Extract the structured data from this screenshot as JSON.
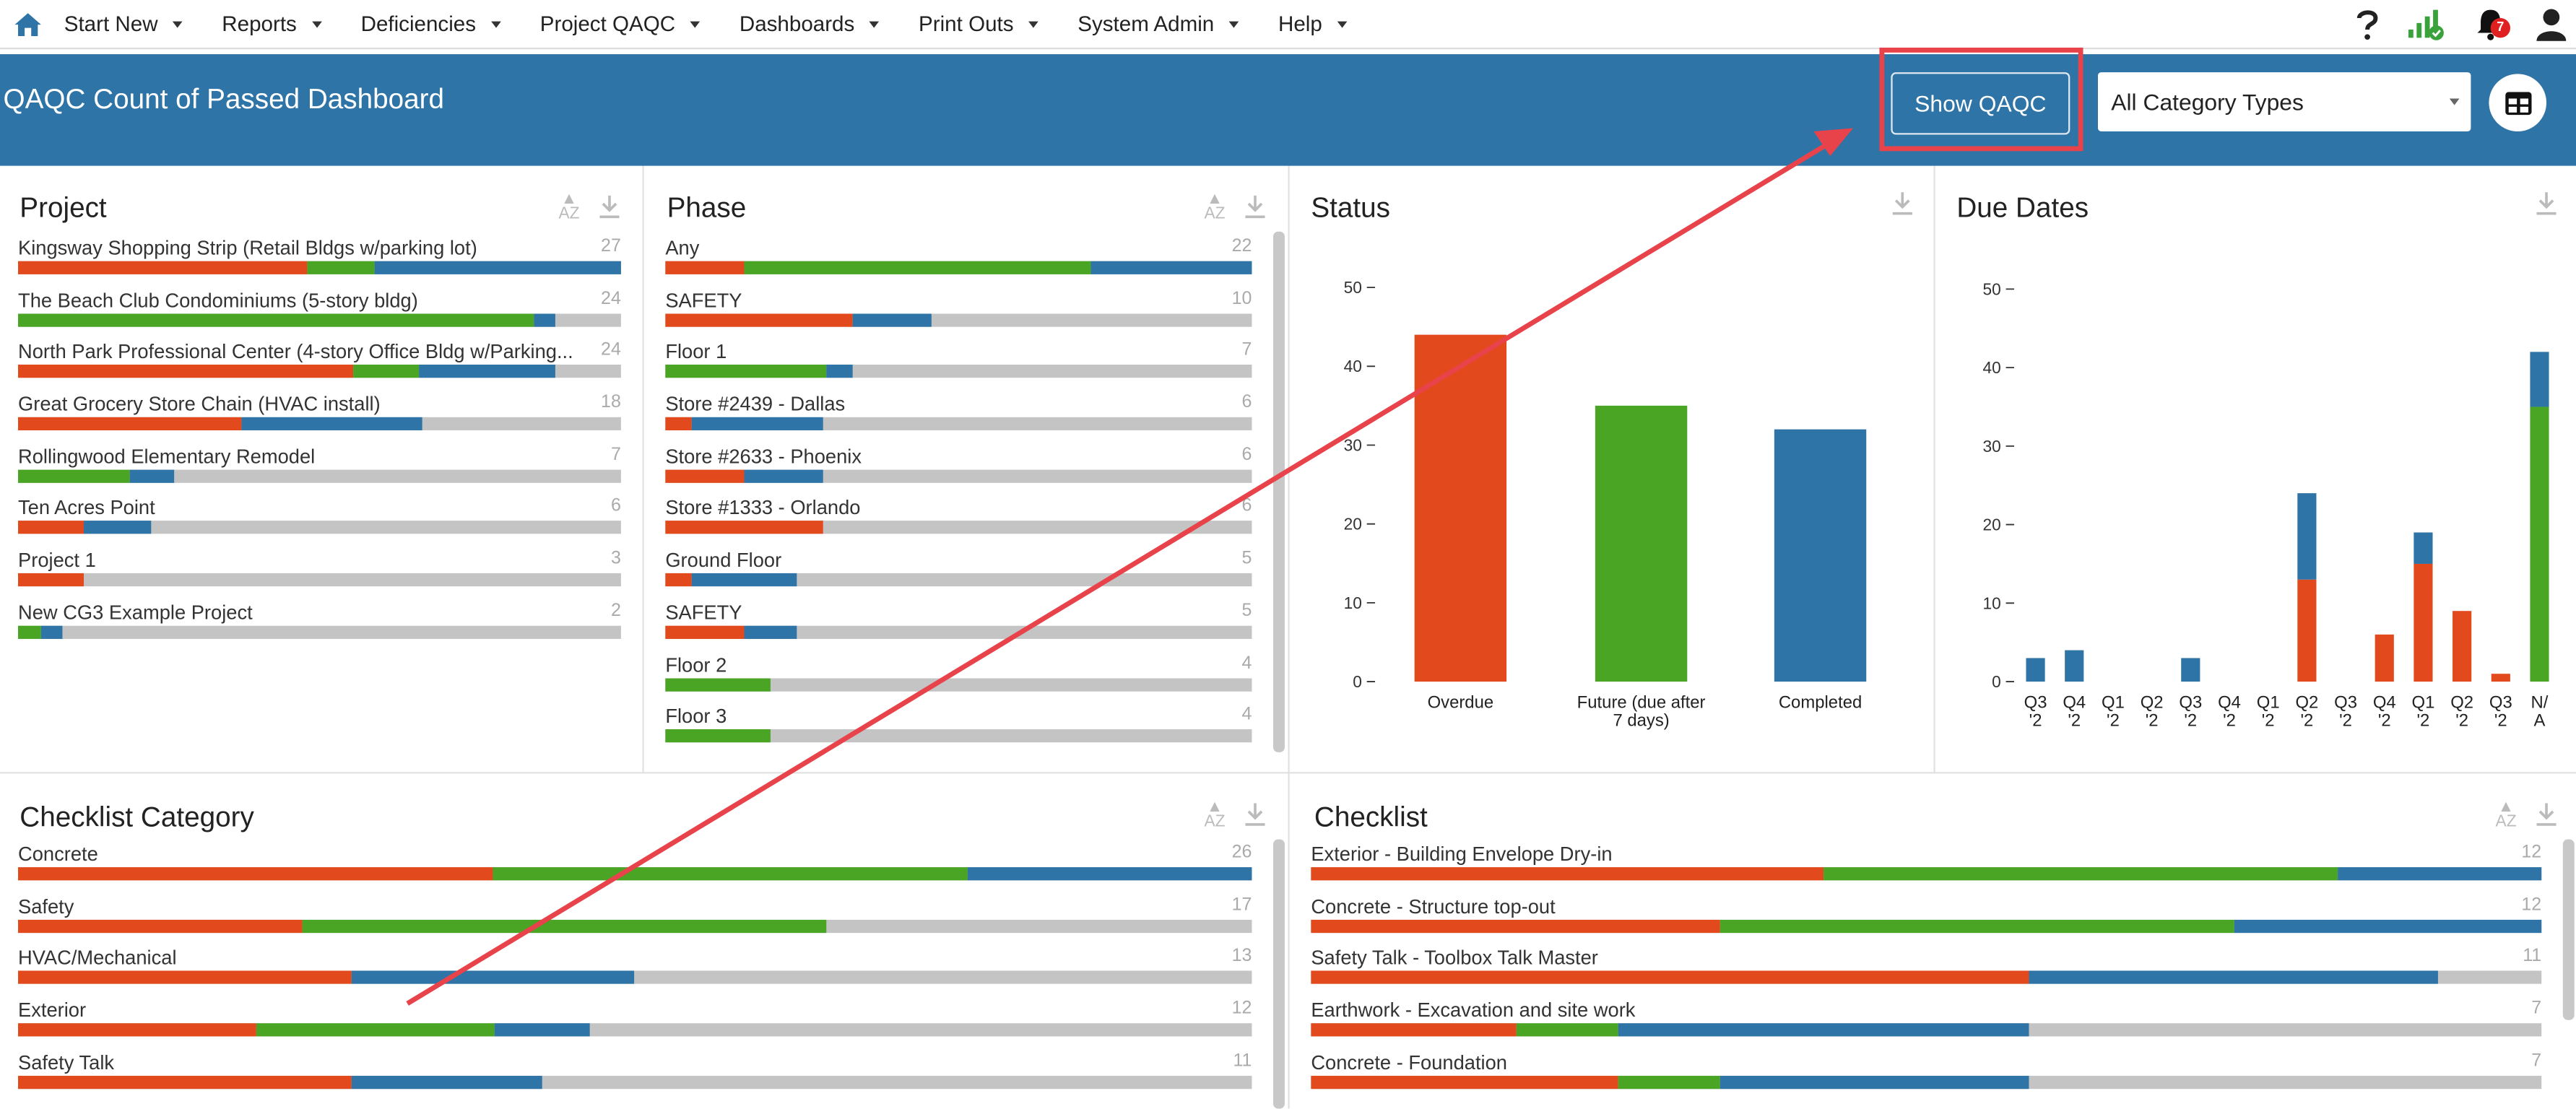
{
  "nav": {
    "items": [
      "Start New",
      "Reports",
      "Deficiencies",
      "Project QAQC",
      "Dashboards",
      "Print Outs",
      "System Admin",
      "Help"
    ],
    "notification_count": "7",
    "icons": [
      "home-icon",
      "help-icon",
      "signal-icon",
      "bell-icon",
      "user-icon"
    ]
  },
  "header": {
    "title": "QAQC Count of Passed Dashboard",
    "show_button": "Show QAQC",
    "category_select": "All Category Types"
  },
  "colors": {
    "overdue": "#e24a1d",
    "future": "#4aa524",
    "completed": "#2f74a6",
    "empty": "#c4c4c4"
  },
  "project": {
    "title": "Project",
    "rows": [
      {
        "label": "Kingsway Shopping Strip (Retail Bldgs w/parking lot)",
        "count": "27",
        "segs": [
          0.48,
          0.11,
          0.41
        ]
      },
      {
        "label": "The Beach Club Condominiums (5-story bldg)",
        "count": "24",
        "segs": [
          0,
          0.855,
          0.035
        ]
      },
      {
        "label": "North Park Professional Center (4-story Office Bldg w/Parking...",
        "count": "24",
        "segs": [
          0.555,
          0.11,
          0.225
        ]
      },
      {
        "label": "Great Grocery Store Chain (HVAC install)",
        "count": "18",
        "segs": [
          0.37,
          0,
          0.3
        ]
      },
      {
        "label": "Rollingwood Elementary Remodel",
        "count": "7",
        "segs": [
          0,
          0.185,
          0.075
        ]
      },
      {
        "label": "Ten Acres Point",
        "count": "6",
        "segs": [
          0.11,
          0,
          0.11
        ]
      },
      {
        "label": "Project 1",
        "count": "3",
        "segs": [
          0.11,
          0,
          0
        ]
      },
      {
        "label": "New CG3 Example Project",
        "count": "2",
        "segs": [
          0,
          0.037,
          0.037
        ]
      }
    ]
  },
  "phase": {
    "title": "Phase",
    "rows": [
      {
        "label": "Any",
        "count": "22",
        "segs": [
          0.135,
          0.59,
          0.275
        ]
      },
      {
        "label": "SAFETY",
        "count": "10",
        "segs": [
          0.32,
          0,
          0.135
        ]
      },
      {
        "label": "Floor 1",
        "count": "7",
        "segs": [
          0,
          0.275,
          0.045
        ]
      },
      {
        "label": "Store #2439 - Dallas",
        "count": "6",
        "segs": [
          0.045,
          0,
          0.225
        ]
      },
      {
        "label": "Store #2633 - Phoenix",
        "count": "6",
        "segs": [
          0.135,
          0,
          0.135
        ]
      },
      {
        "label": "Store #1333 - Orlando",
        "count": "6",
        "segs": [
          0.27,
          0,
          0
        ]
      },
      {
        "label": "Ground Floor",
        "count": "5",
        "segs": [
          0.045,
          0,
          0.18
        ]
      },
      {
        "label": "SAFETY",
        "count": "5",
        "segs": [
          0.135,
          0,
          0.09
        ]
      },
      {
        "label": "Floor 2",
        "count": "4",
        "segs": [
          0,
          0.18,
          0
        ]
      },
      {
        "label": "Floor 3",
        "count": "4",
        "segs": [
          0,
          0.18,
          0
        ]
      }
    ]
  },
  "status": {
    "title": "Status",
    "chart_data": {
      "type": "bar",
      "categories": [
        "Overdue",
        "Future (due after 7 days)",
        "Completed"
      ],
      "values": [
        44,
        35,
        32
      ],
      "ylim": [
        0,
        55
      ],
      "yticks": [
        0,
        10,
        20,
        30,
        40,
        50
      ]
    }
  },
  "due_dates": {
    "title": "Due Dates",
    "chart_data": {
      "type": "bar",
      "stacked": true,
      "categories": [
        "Q3 '2",
        "Q4 '2",
        "Q1 '2",
        "Q2 '2",
        "Q3 '2",
        "Q4 '2",
        "Q1 '2",
        "Q2 '2",
        "Q3 '2",
        "Q4 '2",
        "Q1 '2",
        "Q2 '2",
        "Q3 '2",
        "N/ A"
      ],
      "series": [
        {
          "name": "Overdue",
          "values": [
            0,
            0,
            0,
            0,
            0,
            0,
            0,
            13,
            0,
            6,
            15,
            9,
            1,
            0
          ]
        },
        {
          "name": "Future",
          "values": [
            0,
            0,
            0,
            0,
            0,
            0,
            0,
            0,
            0,
            0,
            0,
            0,
            0,
            35
          ]
        },
        {
          "name": "Completed",
          "values": [
            3,
            4,
            0,
            0,
            3,
            0,
            0,
            11,
            0,
            0,
            4,
            0,
            0,
            7
          ]
        }
      ],
      "ylim": [
        0,
        55
      ],
      "yticks": [
        0,
        10,
        20,
        30,
        40,
        50
      ]
    }
  },
  "checklist_category": {
    "title": "Checklist Category",
    "rows": [
      {
        "label": "Concrete",
        "count": "26",
        "segs": [
          0.385,
          0.385,
          0.23
        ]
      },
      {
        "label": "Safety",
        "count": "17",
        "segs": [
          0.23,
          0.425,
          0
        ]
      },
      {
        "label": "HVAC/Mechanical",
        "count": "13",
        "segs": [
          0.27,
          0,
          0.23
        ]
      },
      {
        "label": "Exterior",
        "count": "12",
        "segs": [
          0.193,
          0.193,
          0.077
        ]
      },
      {
        "label": "Safety Talk",
        "count": "11",
        "segs": [
          0.27,
          0,
          0.155
        ]
      }
    ]
  },
  "checklist": {
    "title": "Checklist",
    "rows": [
      {
        "label": "Exterior - Building Envelope Dry-in",
        "count": "12",
        "segs": [
          0.417,
          0.417,
          0.166
        ]
      },
      {
        "label": "Concrete - Structure top-out",
        "count": "12",
        "segs": [
          0.333,
          0.417,
          0.25
        ]
      },
      {
        "label": "Safety Talk - Toolbox Talk Master",
        "count": "11",
        "segs": [
          0.583,
          0,
          0.333
        ]
      },
      {
        "label": "Earthwork - Excavation and site work",
        "count": "7",
        "segs": [
          0.167,
          0.083,
          0.333
        ]
      },
      {
        "label": "Concrete - Foundation",
        "count": "7",
        "segs": [
          0.25,
          0.083,
          0.25
        ]
      }
    ]
  }
}
